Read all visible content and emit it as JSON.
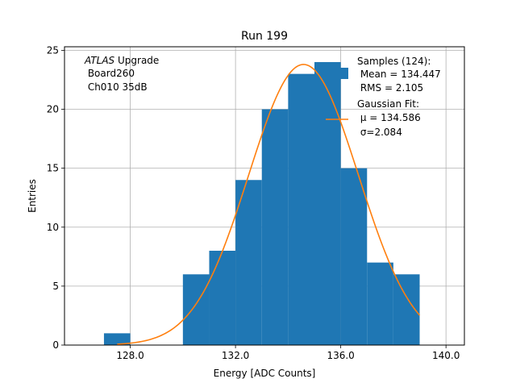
{
  "chart_data": {
    "type": "bar",
    "title": "Run 199",
    "xlabel": "Energy [ADC Counts]",
    "ylabel": "Entries",
    "xlim": [
      125.5,
      140.7
    ],
    "ylim": [
      0,
      25.3
    ],
    "xticks": [
      128.0,
      132.0,
      136.0,
      140.0
    ],
    "xtick_labels": [
      "128.0",
      "132.0",
      "136.0",
      "140.0"
    ],
    "yticks": [
      0,
      5,
      10,
      15,
      20,
      25
    ],
    "ytick_labels": [
      "0",
      "5",
      "10",
      "15",
      "20",
      "25"
    ],
    "grid": true,
    "legend_position": "top-right",
    "histogram": {
      "name": "Samples (124):",
      "color": "#1f77b4",
      "bins": [
        {
          "x0": 127,
          "x1": 128,
          "count": 1
        },
        {
          "x0": 128,
          "x1": 129,
          "count": 0
        },
        {
          "x0": 129,
          "x1": 130,
          "count": 0
        },
        {
          "x0": 130,
          "x1": 131,
          "count": 6
        },
        {
          "x0": 131,
          "x1": 132,
          "count": 8
        },
        {
          "x0": 132,
          "x1": 133,
          "count": 14
        },
        {
          "x0": 133,
          "x1": 134,
          "count": 20
        },
        {
          "x0": 134,
          "x1": 135,
          "count": 23
        },
        {
          "x0": 135,
          "x1": 136,
          "count": 24
        },
        {
          "x0": 136,
          "x1": 137,
          "count": 15
        },
        {
          "x0": 137,
          "x1": 138,
          "count": 7
        },
        {
          "x0": 138,
          "x1": 139,
          "count": 6
        }
      ]
    },
    "fit": {
      "name": "Gaussian Fit:",
      "color": "#ff7f0e",
      "mu": 134.586,
      "sigma": 2.084,
      "peak": 23.8,
      "x_range": [
        127.5,
        139.0
      ]
    },
    "legend": {
      "samples_title": "Samples (124):",
      "mean_text": " Mean = 134.447",
      "rms_text": " RMS = 2.105",
      "fit_title": "Gaussian Fit:",
      "mu_text": " μ = 134.586",
      "sigma_text": " σ=2.084"
    },
    "annotation": {
      "experiment": "ATLAS",
      "experiment_suffix": " Upgrade",
      "board": " Board260",
      "channel": " Ch010 35dB"
    }
  }
}
